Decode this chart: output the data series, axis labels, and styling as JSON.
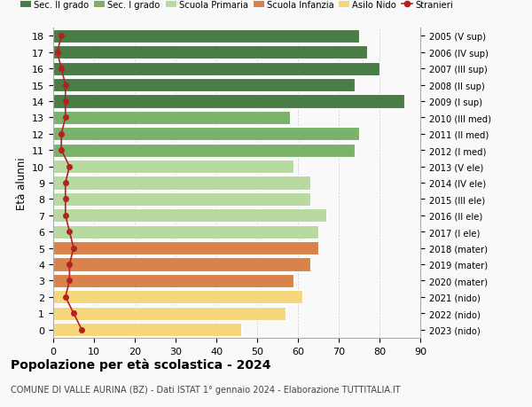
{
  "ages": [
    18,
    17,
    16,
    15,
    14,
    13,
    12,
    11,
    10,
    9,
    8,
    7,
    6,
    5,
    4,
    3,
    2,
    1,
    0
  ],
  "right_labels": [
    "2005 (V sup)",
    "2006 (IV sup)",
    "2007 (III sup)",
    "2008 (II sup)",
    "2009 (I sup)",
    "2010 (III med)",
    "2011 (II med)",
    "2012 (I med)",
    "2013 (V ele)",
    "2014 (IV ele)",
    "2015 (III ele)",
    "2016 (II ele)",
    "2017 (I ele)",
    "2018 (mater)",
    "2019 (mater)",
    "2020 (mater)",
    "2021 (nido)",
    "2022 (nido)",
    "2023 (nido)"
  ],
  "bar_values": [
    75,
    77,
    80,
    74,
    86,
    58,
    75,
    74,
    59,
    63,
    63,
    67,
    65,
    65,
    63,
    59,
    61,
    57,
    46
  ],
  "bar_colors": [
    "#4a7c45",
    "#4a7c45",
    "#4a7c45",
    "#4a7c45",
    "#4a7c45",
    "#7ab26a",
    "#7ab26a",
    "#7ab26a",
    "#b8d9a0",
    "#b8d9a0",
    "#b8d9a0",
    "#b8d9a0",
    "#b8d9a0",
    "#d9834a",
    "#d9834a",
    "#d9834a",
    "#f5d67a",
    "#f5d67a",
    "#f5d67a"
  ],
  "stranieri_values": [
    2,
    1,
    2,
    3,
    3,
    3,
    2,
    2,
    4,
    3,
    3,
    3,
    4,
    5,
    4,
    4,
    3,
    5,
    7
  ],
  "title": "Popolazione per età scolastica - 2024",
  "subtitle": "COMUNE DI VALLE AURINA (BZ) - Dati ISTAT 1° gennaio 2024 - Elaborazione TUTTITALIA.IT",
  "ylabel": "Età alunni",
  "xlim": [
    0,
    90
  ],
  "xticks": [
    0,
    10,
    20,
    30,
    40,
    50,
    60,
    70,
    80,
    90
  ],
  "legend_labels": [
    "Sec. II grado",
    "Sec. I grado",
    "Scuola Primaria",
    "Scuola Infanzia",
    "Asilo Nido",
    "Stranieri"
  ],
  "legend_colors": [
    "#4a7c45",
    "#7ab26a",
    "#b8d9a0",
    "#d9834a",
    "#f5d67a",
    "#b22222"
  ],
  "stranieri_color": "#b22222",
  "bar_height": 0.82,
  "bg_color": "#f9f9f9",
  "dashed_color": "#cccccc"
}
